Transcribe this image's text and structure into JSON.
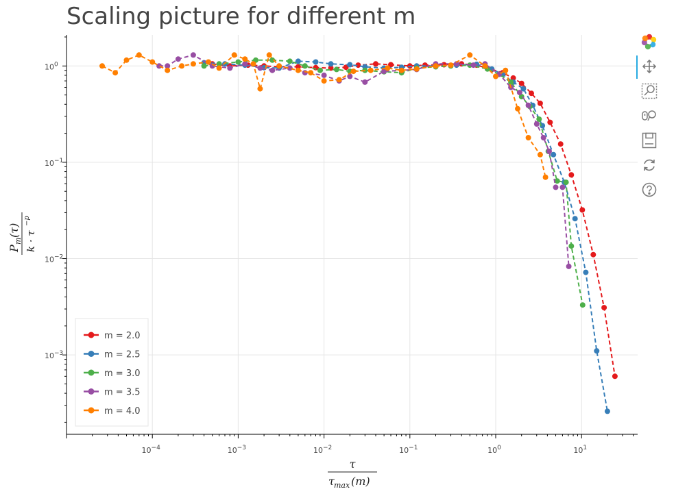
{
  "chart_data": {
    "type": "line",
    "title": "Scaling picture for different m",
    "xlabel": {
      "numerator": "τ",
      "denominator_base": "τ",
      "denominator_sub": "max",
      "denominator_arg": "(m)"
    },
    "ylabel": {
      "numerator_base": "P",
      "numerator_sub": "m",
      "numerator_arg": "(τ)",
      "denominator": "k · τ",
      "denominator_sup": "−p"
    },
    "x_scale": "log",
    "y_scale": "log",
    "xlim": [
      1e-05,
      45
    ],
    "ylim": [
      0.00015,
      2.1
    ],
    "grid": true,
    "legend_position": "bottom-left",
    "x_ticks": [
      {
        "value": 0.0001,
        "base": "10",
        "exp": "−4"
      },
      {
        "value": 0.001,
        "base": "10",
        "exp": "−3"
      },
      {
        "value": 0.01,
        "base": "10",
        "exp": "−2"
      },
      {
        "value": 0.1,
        "base": "10",
        "exp": "−1"
      },
      {
        "value": 1,
        "base": "10",
        "exp": "0"
      },
      {
        "value": 10,
        "base": "10",
        "exp": "1"
      }
    ],
    "y_ticks": [
      {
        "value": 1,
        "base": "10",
        "exp": "0"
      },
      {
        "value": 0.1,
        "base": "10",
        "exp": "−1"
      },
      {
        "value": 0.01,
        "base": "10",
        "exp": "−2"
      },
      {
        "value": 0.001,
        "base": "10",
        "exp": "−3"
      }
    ],
    "series": [
      {
        "name": "m = 2.0",
        "color": "#e41a1c",
        "points": [
          [
            0.0005,
            1.05
          ],
          [
            0.0008,
            1.0
          ],
          [
            0.0013,
            1.02
          ],
          [
            0.002,
            1.0
          ],
          [
            0.003,
            0.98
          ],
          [
            0.005,
            0.98
          ],
          [
            0.008,
            0.96
          ],
          [
            0.012,
            0.95
          ],
          [
            0.018,
            0.97
          ],
          [
            0.025,
            1.02
          ],
          [
            0.04,
            1.05
          ],
          [
            0.06,
            1.03
          ],
          [
            0.1,
            1.0
          ],
          [
            0.15,
            1.02
          ],
          [
            0.25,
            1.03
          ],
          [
            0.4,
            1.05
          ],
          [
            0.6,
            1.02
          ],
          [
            0.9,
            0.92
          ],
          [
            1.2,
            0.85
          ],
          [
            1.6,
            0.75
          ],
          [
            2.0,
            0.66
          ],
          [
            2.6,
            0.52
          ],
          [
            3.3,
            0.41
          ],
          [
            4.3,
            0.26
          ],
          [
            5.7,
            0.155
          ],
          [
            7.6,
            0.074
          ],
          [
            10.2,
            0.032
          ],
          [
            13.7,
            0.011
          ],
          [
            18.3,
            0.0031
          ],
          [
            24.5,
            0.0006
          ]
        ]
      },
      {
        "name": "m = 2.5",
        "color": "#377eb8",
        "points": [
          [
            0.0004,
            1.08
          ],
          [
            0.0007,
            1.05
          ],
          [
            0.0012,
            1.02
          ],
          [
            0.002,
            0.96
          ],
          [
            0.003,
            0.95
          ],
          [
            0.005,
            1.12
          ],
          [
            0.008,
            1.1
          ],
          [
            0.012,
            1.05
          ],
          [
            0.02,
            1.03
          ],
          [
            0.03,
            0.98
          ],
          [
            0.05,
            0.95
          ],
          [
            0.08,
            0.97
          ],
          [
            0.12,
            1.0
          ],
          [
            0.2,
            1.0
          ],
          [
            0.35,
            1.02
          ],
          [
            0.6,
            1.04
          ],
          [
            0.9,
            0.93
          ],
          [
            1.2,
            0.82
          ],
          [
            1.6,
            0.68
          ],
          [
            2.1,
            0.58
          ],
          [
            2.7,
            0.39
          ],
          [
            3.5,
            0.24
          ],
          [
            4.7,
            0.12
          ],
          [
            6.3,
            0.062
          ],
          [
            8.4,
            0.026
          ],
          [
            11.2,
            0.0072
          ],
          [
            15.0,
            0.0011
          ],
          [
            20.0,
            0.00026
          ]
        ]
      },
      {
        "name": "m = 3.0",
        "color": "#4daf4a",
        "points": [
          [
            0.0004,
            1.0
          ],
          [
            0.0006,
            1.05
          ],
          [
            0.001,
            1.1
          ],
          [
            0.0016,
            1.15
          ],
          [
            0.0025,
            1.15
          ],
          [
            0.004,
            1.12
          ],
          [
            0.006,
            1.0
          ],
          [
            0.009,
            0.9
          ],
          [
            0.014,
            0.92
          ],
          [
            0.02,
            0.88
          ],
          [
            0.03,
            0.9
          ],
          [
            0.05,
            0.87
          ],
          [
            0.08,
            0.85
          ],
          [
            0.12,
            0.95
          ],
          [
            0.2,
            0.98
          ],
          [
            0.3,
            1.0
          ],
          [
            0.5,
            1.02
          ],
          [
            0.8,
            0.93
          ],
          [
            1.1,
            0.82
          ],
          [
            1.5,
            0.68
          ],
          [
            2.0,
            0.48
          ],
          [
            2.5,
            0.38
          ],
          [
            3.2,
            0.28
          ],
          [
            4.1,
            0.13
          ],
          [
            5.2,
            0.064
          ],
          [
            6.6,
            0.062
          ],
          [
            7.6,
            0.0135
          ],
          [
            10.3,
            0.0033
          ]
        ]
      },
      {
        "name": "m = 3.5",
        "color": "#984ea3",
        "points": [
          [
            0.00012,
            1.0
          ],
          [
            0.00015,
            1.0
          ],
          [
            0.0002,
            1.18
          ],
          [
            0.0003,
            1.3
          ],
          [
            0.0005,
            1.0
          ],
          [
            0.0008,
            0.95
          ],
          [
            0.0012,
            1.05
          ],
          [
            0.0018,
            0.95
          ],
          [
            0.0025,
            0.9
          ],
          [
            0.004,
            0.95
          ],
          [
            0.006,
            0.85
          ],
          [
            0.01,
            0.8
          ],
          [
            0.015,
            0.7
          ],
          [
            0.02,
            0.78
          ],
          [
            0.03,
            0.68
          ],
          [
            0.05,
            0.88
          ],
          [
            0.08,
            0.9
          ],
          [
            0.12,
            0.92
          ],
          [
            0.2,
            1.05
          ],
          [
            0.35,
            1.05
          ],
          [
            0.55,
            1.02
          ],
          [
            0.75,
            1.05
          ],
          [
            1.1,
            0.82
          ],
          [
            1.5,
            0.6
          ],
          [
            1.9,
            0.53
          ],
          [
            2.4,
            0.39
          ],
          [
            3.0,
            0.25
          ],
          [
            3.6,
            0.18
          ],
          [
            4.2,
            0.13
          ],
          [
            5.0,
            0.055
          ],
          [
            6.0,
            0.055
          ],
          [
            7.1,
            0.0083
          ]
        ]
      },
      {
        "name": "m = 4.0",
        "color": "#ff7f00",
        "points": [
          [
            2.6e-05,
            1.0
          ],
          [
            3.7e-05,
            0.85
          ],
          [
            5e-05,
            1.15
          ],
          [
            7e-05,
            1.3
          ],
          [
            0.0001,
            1.1
          ],
          [
            0.00015,
            0.9
          ],
          [
            0.00022,
            1.0
          ],
          [
            0.0003,
            1.05
          ],
          [
            0.00045,
            1.1
          ],
          [
            0.0006,
            0.95
          ],
          [
            0.0009,
            1.3
          ],
          [
            0.0012,
            1.18
          ],
          [
            0.0015,
            1.05
          ],
          [
            0.0018,
            0.58
          ],
          [
            0.0023,
            1.3
          ],
          [
            0.003,
            1.0
          ],
          [
            0.005,
            0.9
          ],
          [
            0.007,
            0.85
          ],
          [
            0.01,
            0.7
          ],
          [
            0.015,
            0.72
          ],
          [
            0.022,
            0.88
          ],
          [
            0.035,
            0.9
          ],
          [
            0.055,
            0.95
          ],
          [
            0.08,
            0.9
          ],
          [
            0.12,
            0.93
          ],
          [
            0.2,
            1.0
          ],
          [
            0.3,
            1.02
          ],
          [
            0.5,
            1.3
          ],
          [
            0.75,
            1.0
          ],
          [
            1.0,
            0.78
          ],
          [
            1.3,
            0.9
          ],
          [
            1.8,
            0.36
          ],
          [
            2.4,
            0.18
          ],
          [
            3.3,
            0.12
          ],
          [
            3.8,
            0.07
          ]
        ]
      }
    ]
  },
  "toolbar": {
    "items": [
      {
        "name": "bokeh-logo"
      },
      {
        "name": "pan-tool"
      },
      {
        "name": "box-zoom-tool"
      },
      {
        "name": "wheel-zoom-tool"
      },
      {
        "name": "save-tool"
      },
      {
        "name": "reset-tool"
      },
      {
        "name": "help-tool"
      }
    ]
  }
}
